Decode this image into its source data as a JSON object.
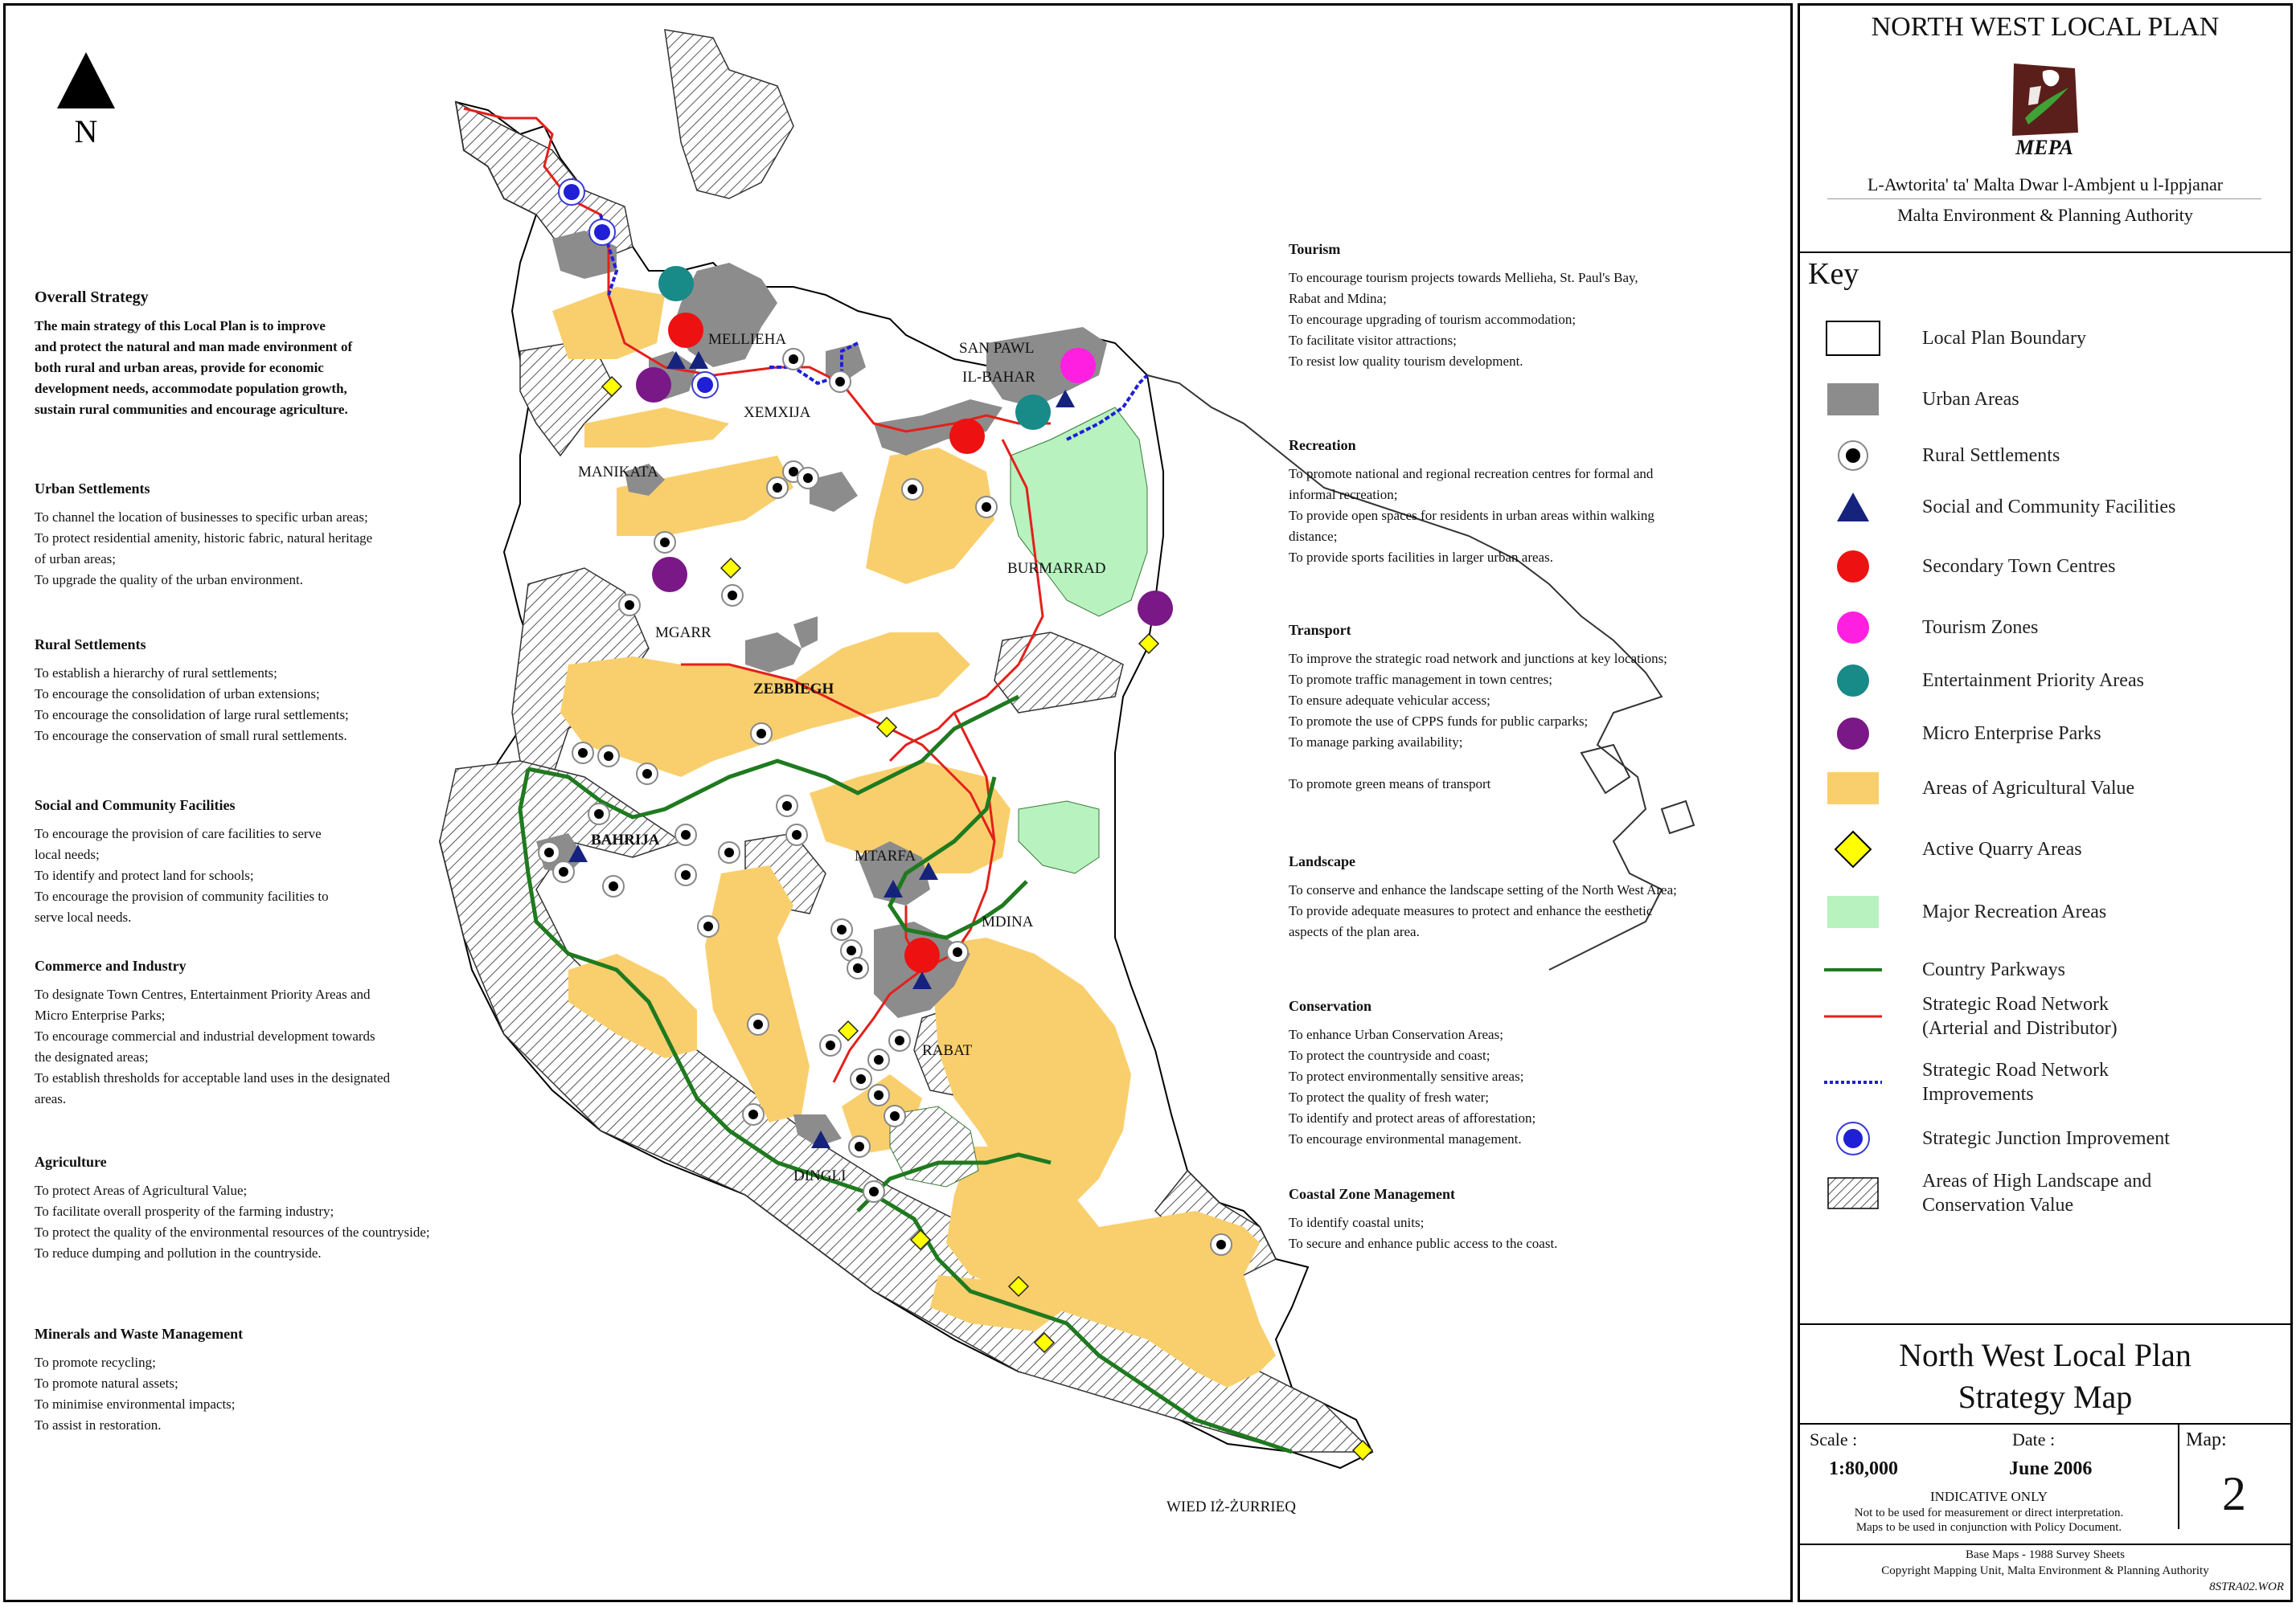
{
  "north_label": "N",
  "place_labels": {
    "mellieha": "MELLIEHA",
    "xemxija": "XEMXIJA",
    "san_pawl": "SAN PAWL",
    "il_bahar": "IL-BAHAR",
    "manikata": "MANIKATA",
    "burmarrad": "BURMARRAD",
    "mgarr": "MGARR",
    "zebbiegh": "ZEBBIEGH",
    "bahrija": "BAHRIJA",
    "mtarfa": "MTARFA",
    "mdina": "MDINA",
    "rabat": "RABAT",
    "dingli": "DINGLI",
    "wied_iz_zurrieq": "WIED IŻ-ŻURRIEQ"
  },
  "left_text": {
    "overall": {
      "heading": "Overall Strategy",
      "body": "The main strategy of this Local Plan is to improve\nand protect the natural and man made environment of\nboth rural and urban areas, provide for economic\ndevelopment needs, accommodate population growth,\nsustain rural communities and encourage agriculture."
    },
    "urban": {
      "heading": "Urban Settlements",
      "body": "To channel the location of businesses to specific urban areas;\nTo protect residential amenity, historic fabric, natural heritage\nof urban areas;\nTo upgrade the quality of the urban environment."
    },
    "rural": {
      "heading": "Rural Settlements",
      "body": "To establish a hierarchy of rural settlements;\nTo encourage the consolidation of urban extensions;\nTo encourage the consolidation of large rural settlements;\nTo encourage the conservation of small rural settlements."
    },
    "social": {
      "heading": "Social and Community Facilities",
      "body": "To encourage the provision of care facilities to serve\nlocal needs;\nTo identify and protect land for schools;\nTo encourage the provision of community facilities to\nserve local needs."
    },
    "commerce": {
      "heading": "Commerce and Industry",
      "body": "To designate Town Centres, Entertainment Priority Areas and\nMicro Enterprise Parks;\nTo encourage commercial and industrial development towards\nthe designated areas;\nTo establish thresholds for acceptable land uses in the designated\nareas."
    },
    "agriculture": {
      "heading": "Agriculture",
      "body": "To protect Areas of Agricultural Value;\nTo facilitate overall prosperity of the farming industry;\nTo protect the quality of the environmental resources of the countryside;\nTo reduce dumping and pollution in the countryside."
    },
    "minerals": {
      "heading": "Minerals and Waste Management",
      "body": "To promote recycling;\nTo promote natural assets;\nTo minimise environmental impacts;\nTo assist in restoration."
    }
  },
  "right_text": {
    "tourism": {
      "heading": "Tourism",
      "body": "To encourage tourism projects towards Mellieha, St. Paul's Bay,\nRabat and Mdina;\nTo encourage upgrading of tourism accommodation;\nTo facilitate visitor attractions;\nTo resist low quality tourism development."
    },
    "recreation": {
      "heading": "Recreation",
      "body": "To promote national and regional recreation centres for formal and\ninformal recreation;\nTo provide open spaces for residents in urban areas within walking\ndistance;\nTo provide sports facilities in larger urban areas."
    },
    "transport": {
      "heading": "Transport",
      "body": "To improve the strategic road network and junctions at key locations;\nTo promote traffic management in town centres;\nTo ensure adequate vehicular access;\nTo promote the use of CPPS funds for public carparks;\nTo manage parking availability;\n\nTo promote green means of transport"
    },
    "landscape": {
      "heading": "Landscape",
      "body": "To conserve and enhance the landscape setting of the North West Area;\nTo provide adequate measures to protect and enhance the eesthetic\naspects of the plan area."
    },
    "conservation": {
      "heading": "Conservation",
      "body": "To enhance Urban Conservation Areas;\nTo protect the countryside and coast;\nTo protect environmentally sensitive areas;\nTo protect the quality of fresh water;\nTo identify and protect areas of afforestation;\nTo encourage environmental management."
    },
    "coastal": {
      "heading": "Coastal Zone Management",
      "body": "To identify coastal units;\nTo secure and enhance public access to the coast."
    }
  },
  "panel": {
    "plan_title": "NORTH WEST LOCAL PLAN",
    "logo_text": "MEPA",
    "authority_mt": "L-Awtorita' ta' Malta Dwar l-Ambjent u l-Ippjanar",
    "authority_en": "Malta Environment & Planning Authority",
    "key_title": "Key",
    "key_items": [
      {
        "label": "Local Plan Boundary",
        "symbol": "boundary"
      },
      {
        "label": "Urban Areas",
        "symbol": "urban"
      },
      {
        "label": "Rural Settlements",
        "symbol": "rural"
      },
      {
        "label": "Social and Community Facilities",
        "symbol": "triangle"
      },
      {
        "label": "Secondary Town Centres",
        "symbol": "red-dot"
      },
      {
        "label": "Tourism Zones",
        "symbol": "magenta-dot"
      },
      {
        "label": "Entertainment Priority Areas",
        "symbol": "teal-dot"
      },
      {
        "label": "Micro Enterprise Parks",
        "symbol": "purple-dot"
      },
      {
        "label": "Areas of Agricultural Value",
        "symbol": "agri"
      },
      {
        "label": "Active Quarry Areas",
        "symbol": "diamond"
      },
      {
        "label": "Major Recreation Areas",
        "symbol": "recreation"
      },
      {
        "label": "Country Parkways",
        "symbol": "green-line"
      },
      {
        "label": "Strategic Road Network\n(Arterial and Distributor)",
        "symbol": "red-line"
      },
      {
        "label": "Strategic Road Network\nImprovements",
        "symbol": "blue-dashed"
      },
      {
        "label": "Strategic Junction Improvement",
        "symbol": "blue-dot"
      },
      {
        "label": "Areas of High Landscape and\nConservation Value",
        "symbol": "hatch"
      }
    ],
    "map_title_1": "North West Local Plan",
    "map_title_2": "Strategy Map",
    "scale_label": "Scale :",
    "scale_value": "1:80,000",
    "date_label": "Date :",
    "date_value": "June 2006",
    "map_label": "Map:",
    "map_number": "2",
    "indicative": "INDICATIVE ONLY",
    "disclaimer_1": "Not to be used for measurement or direct interpretation.",
    "disclaimer_2": "Maps to be used in conjunction with Policy Document.",
    "base_maps": "Base Maps - 1988 Survey Sheets",
    "copyright": "Copyright Mapping Unit, Malta Environment & Planning Authority",
    "file_code": "8STRA02.WOR"
  },
  "colors": {
    "urban": "#8c8c8c",
    "agri": "#f9cf6e",
    "recreation": "#b7f2bf",
    "road": "#e3201b",
    "parkway": "#1f7a1f",
    "road_improve": "#1f1fd6",
    "tourism": "#ff1fe1",
    "entertainment": "#188a88",
    "micro": "#7a1887",
    "secondary": "#ee1111",
    "triangle": "#16237c",
    "quarry": "#ffff00"
  }
}
